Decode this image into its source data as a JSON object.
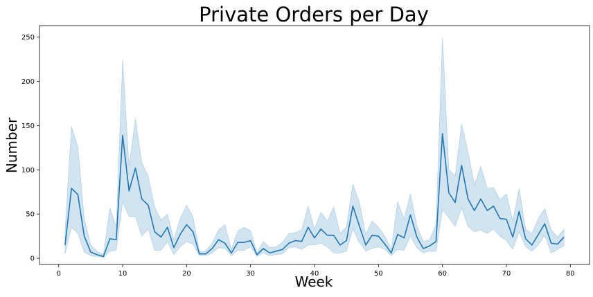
{
  "chart_data": {
    "type": "line",
    "title": "Private Orders per Day",
    "xlabel": "Week",
    "ylabel": "Number",
    "xlim": [
      -3,
      83
    ],
    "ylim": [
      -7,
      263
    ],
    "xticks": [
      0,
      10,
      20,
      30,
      40,
      50,
      60,
      70,
      80
    ],
    "yticks": [
      0,
      50,
      100,
      150,
      200,
      250
    ],
    "grid": false,
    "legend": "none",
    "colors": {
      "line": "#1f77b4",
      "band": "#1f77b4"
    },
    "series": [
      {
        "x": [
          1,
          2,
          3,
          4,
          5,
          6,
          7,
          8,
          9,
          10,
          11,
          12,
          13,
          14,
          15,
          16,
          17,
          18,
          19,
          20,
          21,
          22,
          23,
          24,
          25,
          26,
          27,
          28,
          29,
          30,
          31,
          32,
          33,
          34,
          35,
          36,
          37,
          38,
          39,
          40,
          41,
          42,
          43,
          44,
          45,
          46,
          47,
          48,
          49,
          50,
          51,
          52,
          53,
          54,
          55,
          56,
          57,
          58,
          59,
          60,
          61,
          62,
          63,
          64,
          65,
          66,
          67,
          68,
          69,
          70,
          71,
          72,
          73,
          74,
          75,
          76,
          77,
          78,
          79
        ],
        "values": [
          15,
          79,
          72,
          25,
          7,
          4,
          2,
          22,
          21,
          139,
          76,
          102,
          67,
          60,
          30,
          24,
          35,
          12,
          27,
          38,
          30,
          5,
          5,
          11,
          21,
          17,
          6,
          18,
          18,
          20,
          4,
          11,
          6,
          8,
          10,
          17,
          20,
          19,
          35,
          23,
          33,
          26,
          26,
          15,
          20,
          59,
          37,
          15,
          26,
          25,
          16,
          6,
          27,
          23,
          49,
          24,
          11,
          14,
          19,
          141,
          74,
          63,
          105,
          67,
          54,
          67,
          54,
          59,
          45,
          44,
          24,
          53,
          22,
          15,
          27,
          39,
          17,
          16,
          24
        ],
        "lower": [
          5,
          35,
          28,
          7,
          3,
          2,
          1,
          8,
          9,
          64,
          47,
          47,
          25,
          33,
          9,
          9,
          19,
          4,
          13,
          19,
          16,
          3,
          3,
          6,
          12,
          11,
          3,
          9,
          9,
          13,
          2,
          6,
          3,
          4,
          5,
          12,
          13,
          10,
          15,
          15,
          17,
          13,
          6,
          6,
          8,
          33,
          18,
          8,
          11,
          13,
          10,
          3,
          10,
          9,
          25,
          12,
          6,
          8,
          8,
          55,
          46,
          36,
          57,
          36,
          30,
          32,
          28,
          33,
          25,
          20,
          10,
          30,
          13,
          8,
          15,
          26,
          6,
          10,
          14
        ],
        "upper": [
          31,
          149,
          126,
          45,
          15,
          8,
          4,
          57,
          36,
          225,
          104,
          158,
          108,
          93,
          58,
          43,
          50,
          21,
          45,
          60,
          47,
          8,
          8,
          17,
          32,
          38,
          10,
          31,
          35,
          31,
          6,
          19,
          12,
          13,
          18,
          28,
          29,
          32,
          59,
          33,
          52,
          42,
          58,
          28,
          36,
          84,
          64,
          27,
          42,
          35,
          25,
          10,
          64,
          44,
          73,
          37,
          19,
          21,
          38,
          250,
          100,
          93,
          152,
          120,
          83,
          104,
          79,
          80,
          66,
          73,
          42,
          79,
          33,
          28,
          45,
          56,
          32,
          24,
          33
        ]
      }
    ]
  }
}
